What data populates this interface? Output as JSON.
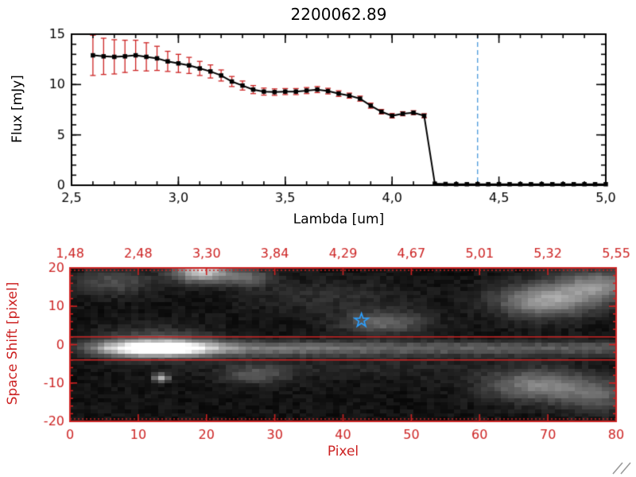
{
  "figure": {
    "background": "#ffffff"
  },
  "chart_data": [
    {
      "type": "line",
      "title": "2200062.89",
      "xlabel": "Lambda [um]",
      "ylabel": "Flux [mJy]",
      "xlim": [
        2.5,
        5.0
      ],
      "ylim": [
        0,
        15
      ],
      "xticks": {
        "values": [
          2.5,
          3.0,
          3.5,
          4.0,
          4.5,
          5.0
        ],
        "labels": [
          "2,5",
          "3,0",
          "3,5",
          "4,0",
          "4,5",
          "5,0"
        ]
      },
      "yticks": {
        "values": [
          0,
          5,
          10,
          15
        ],
        "labels": [
          "0",
          "5",
          "10",
          "15"
        ]
      },
      "x": [
        2.6,
        2.65,
        2.7,
        2.75,
        2.8,
        2.85,
        2.9,
        2.95,
        3.0,
        3.05,
        3.1,
        3.15,
        3.2,
        3.25,
        3.3,
        3.35,
        3.4,
        3.45,
        3.5,
        3.55,
        3.6,
        3.65,
        3.7,
        3.75,
        3.8,
        3.85,
        3.9,
        3.95,
        4.0,
        4.05,
        4.1,
        4.15,
        4.2,
        4.25,
        4.3,
        4.35,
        4.4,
        4.45,
        4.5,
        4.55,
        4.6,
        4.65,
        4.7,
        4.75,
        4.8,
        4.85,
        4.9,
        4.95,
        5.0
      ],
      "y": [
        12.9,
        12.8,
        12.75,
        12.8,
        12.9,
        12.75,
        12.6,
        12.3,
        12.1,
        11.9,
        11.6,
        11.3,
        10.9,
        10.3,
        9.9,
        9.5,
        9.3,
        9.25,
        9.3,
        9.3,
        9.4,
        9.5,
        9.35,
        9.1,
        8.9,
        8.6,
        7.9,
        7.3,
        6.9,
        7.1,
        7.2,
        6.9,
        0.15,
        0.12,
        0.1,
        0.1,
        0.1,
        0.1,
        0.1,
        0.1,
        0.1,
        0.1,
        0.1,
        0.1,
        0.1,
        0.1,
        0.1,
        0.1,
        0.1
      ],
      "yerr": [
        2.0,
        1.8,
        1.7,
        1.6,
        1.5,
        1.4,
        1.2,
        1.0,
        0.9,
        0.8,
        0.7,
        0.65,
        0.55,
        0.5,
        0.45,
        0.4,
        0.35,
        0.32,
        0.3,
        0.3,
        0.3,
        0.3,
        0.28,
        0.28,
        0.25,
        0.25,
        0.25,
        0.22,
        0.22,
        0.2,
        0.2,
        0.2,
        0.05,
        0.05,
        0.05,
        0.05,
        0.05,
        0.05,
        0.05,
        0.05,
        0.05,
        0.05,
        0.05,
        0.05,
        0.05,
        0.05,
        0.05,
        0.05,
        0.05
      ],
      "marker": "square",
      "line_color": "#000000",
      "error_color": "#cc2222",
      "zero_line": {
        "y": 0,
        "color": "#cc2222",
        "style": "dashed"
      },
      "vline": {
        "x": 4.4,
        "color": "#55a0dd",
        "style": "dashed"
      },
      "grid": false,
      "legend": "none"
    },
    {
      "type": "heatmap",
      "xlabel": "Pixel",
      "ylabel": "Space Shift [pixel]",
      "axis_color": "#cc2222",
      "xlim": [
        0,
        80
      ],
      "ylim": [
        -20,
        20
      ],
      "xticks": {
        "values": [
          0,
          10,
          20,
          30,
          40,
          50,
          60,
          70,
          80
        ],
        "labels": [
          "0",
          "10",
          "20",
          "30",
          "40",
          "50",
          "60",
          "70",
          "80"
        ]
      },
      "yticks": {
        "values": [
          -20,
          -10,
          0,
          10,
          20
        ],
        "labels": [
          "-20",
          "-10",
          "0",
          "10",
          "20"
        ]
      },
      "top_axis": {
        "values": [
          0,
          10,
          20,
          30,
          40,
          50,
          60,
          70,
          80
        ],
        "labels": [
          "1,48",
          "2,48",
          "3,30",
          "3,84",
          "4,29",
          "4,67",
          "5,01",
          "5,32",
          "5,55"
        ]
      },
      "aperture_lines": {
        "y": [
          2,
          -4
        ],
        "color": "#cc2222"
      },
      "star": {
        "x": 42.7,
        "y": 6.3,
        "color": "#2da0ff"
      },
      "trace": {
        "y": -1,
        "sigma": 1.4,
        "base_amp": 75,
        "peak": {
          "x": 13,
          "sigma": 5.5,
          "amp": 185
        }
      },
      "blobs": [
        [
          6,
          17,
          4,
          2.5,
          60
        ],
        [
          19,
          20,
          3,
          2.2,
          190
        ],
        [
          26,
          18,
          2.5,
          1.8,
          80
        ],
        [
          46,
          6,
          4.5,
          2.2,
          85
        ],
        [
          38,
          13,
          8,
          3,
          28
        ],
        [
          70,
          12,
          5,
          3.2,
          140
        ],
        [
          78,
          16,
          4,
          3,
          110
        ],
        [
          69,
          -11,
          5.5,
          3,
          110
        ],
        [
          78,
          -14,
          4,
          3,
          70
        ],
        [
          27,
          -8,
          3.5,
          2,
          65
        ],
        [
          13,
          -9,
          0.8,
          0.8,
          170
        ],
        [
          45,
          -6,
          14,
          2.5,
          20
        ],
        [
          12,
          0,
          6,
          3,
          80
        ],
        [
          30,
          -1,
          10,
          1.5,
          25
        ]
      ],
      "noise": {
        "base": 8,
        "amp": 22,
        "seed": 7
      }
    }
  ]
}
